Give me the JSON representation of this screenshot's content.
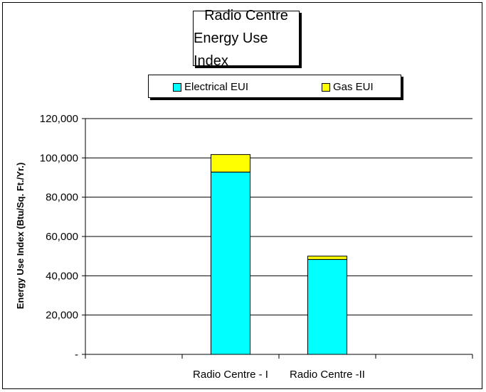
{
  "chart_data": {
    "type": "bar",
    "stacked": true,
    "title_lines": [
      "Radio Centre",
      "Energy Use Index"
    ],
    "categories": [
      "Radio Centre - I",
      "Radio Centre -II"
    ],
    "series": [
      {
        "name": "Electrical EUI",
        "color": "#00FFFF",
        "values": [
          92800,
          48300
        ]
      },
      {
        "name": "Gas EUI",
        "color": "#FFFF00",
        "values": [
          8900,
          1700
        ]
      }
    ],
    "ylabel": "Energy Use Index (Btu/Sq. Ft./Yr.)",
    "xlabel": "",
    "ylim": [
      0,
      120000
    ],
    "y_ticks": [
      0,
      20000,
      40000,
      60000,
      80000,
      100000,
      120000
    ],
    "y_tick_labels": [
      "-",
      "20,000",
      "40,000",
      "60,000",
      "80,000",
      "100,000",
      "120,000"
    ],
    "grid": true,
    "legend_position": "top"
  }
}
